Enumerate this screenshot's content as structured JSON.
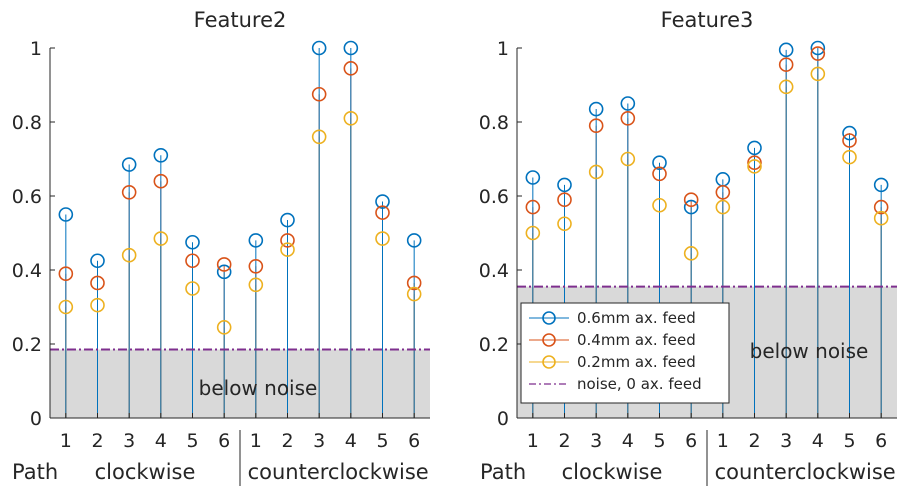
{
  "series_styles": [
    {
      "name": "0.6mm ax. feed",
      "color": "#0072BD"
    },
    {
      "name": "0.4mm ax. feed",
      "color": "#D95319"
    },
    {
      "name": "0.2mm ax. feed",
      "color": "#EDB120"
    }
  ],
  "noise_style": {
    "name": "noise, 0 ax. feed",
    "color": "#7E2F8E"
  },
  "noise_region_label": "below noise",
  "path_label": "Path",
  "group_labels": [
    "clockwise",
    "counterclockwise"
  ],
  "chart_data": [
    {
      "type": "stem",
      "title": "Feature2",
      "categories": [
        "1",
        "2",
        "3",
        "4",
        "5",
        "6",
        "1",
        "2",
        "3",
        "4",
        "5",
        "6"
      ],
      "ylim": [
        0,
        1
      ],
      "yticks": [
        0,
        0.2,
        0.4,
        0.6,
        0.8,
        1
      ],
      "ytick_labels": [
        "0",
        "0.2",
        "0.4",
        "0.6",
        "0.8",
        "1"
      ],
      "noise_level": 0.185,
      "legend": false,
      "series": [
        {
          "name": "0.6mm ax. feed",
          "values": [
            0.55,
            0.425,
            0.685,
            0.71,
            0.475,
            0.395,
            0.48,
            0.535,
            1.0,
            1.0,
            0.585,
            0.48
          ]
        },
        {
          "name": "0.4mm ax. feed",
          "values": [
            0.39,
            0.365,
            0.61,
            0.64,
            0.425,
            0.415,
            0.41,
            0.48,
            0.875,
            0.945,
            0.555,
            0.365
          ]
        },
        {
          "name": "0.2mm ax. feed",
          "values": [
            0.3,
            0.305,
            0.44,
            0.485,
            0.35,
            0.245,
            0.36,
            0.455,
            0.76,
            0.81,
            0.485,
            0.335
          ]
        }
      ]
    },
    {
      "type": "stem",
      "title": "Feature3",
      "categories": [
        "1",
        "2",
        "3",
        "4",
        "5",
        "6",
        "1",
        "2",
        "3",
        "4",
        "5",
        "6"
      ],
      "ylim": [
        0,
        1
      ],
      "yticks": [
        0,
        0.2,
        0.4,
        0.6,
        0.8,
        1
      ],
      "ytick_labels": [
        "0",
        "0.2",
        "0.4",
        "0.6",
        "0.8",
        "1"
      ],
      "noise_level": 0.355,
      "legend": true,
      "legend_position": "lower-left",
      "series": [
        {
          "name": "0.6mm ax. feed",
          "values": [
            0.65,
            0.63,
            0.835,
            0.85,
            0.69,
            0.57,
            0.645,
            0.73,
            0.995,
            1.0,
            0.77,
            0.63
          ]
        },
        {
          "name": "0.4mm ax. feed",
          "values": [
            0.57,
            0.59,
            0.79,
            0.81,
            0.66,
            0.59,
            0.61,
            0.69,
            0.955,
            0.985,
            0.75,
            0.57
          ]
        },
        {
          "name": "0.2mm ax. feed",
          "values": [
            0.5,
            0.525,
            0.665,
            0.7,
            0.575,
            0.445,
            0.57,
            0.68,
            0.895,
            0.93,
            0.705,
            0.54
          ]
        }
      ]
    }
  ]
}
